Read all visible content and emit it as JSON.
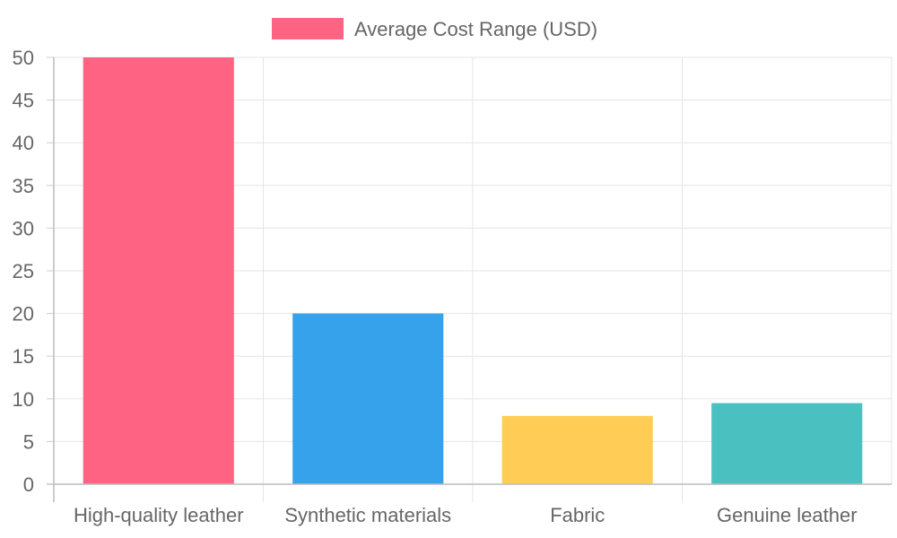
{
  "chart_data": {
    "type": "bar",
    "title": "",
    "xlabel": "",
    "ylabel": "",
    "categories": [
      "High-quality leather",
      "Synthetic materials",
      "Fabric",
      "Genuine leather"
    ],
    "series": [
      {
        "name": "Average Cost Range (USD)",
        "values": [
          50,
          20,
          8,
          9.5
        ],
        "colors": [
          "#ff6384",
          "#36a2eb",
          "#ffcd56",
          "#4bc0c0"
        ]
      }
    ],
    "ylim": [
      0,
      50
    ],
    "yticks": [
      "0",
      "5",
      "10",
      "15",
      "20",
      "25",
      "30",
      "35",
      "40",
      "45",
      "50"
    ],
    "grid": true,
    "legend_position": "top-center",
    "legend_color": "#ff6384"
  }
}
